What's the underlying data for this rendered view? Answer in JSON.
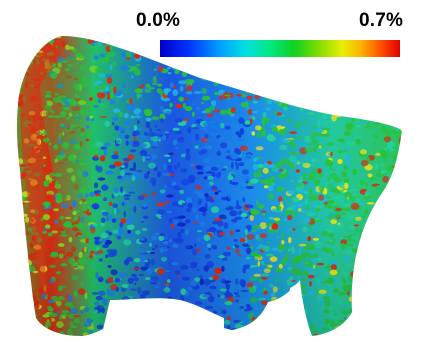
{
  "colorbar": {
    "min_label": "0.0%",
    "max_label": "0.7%"
  },
  "figure": {
    "subject-icon": "trabecular-bone-strain-rendering"
  }
}
